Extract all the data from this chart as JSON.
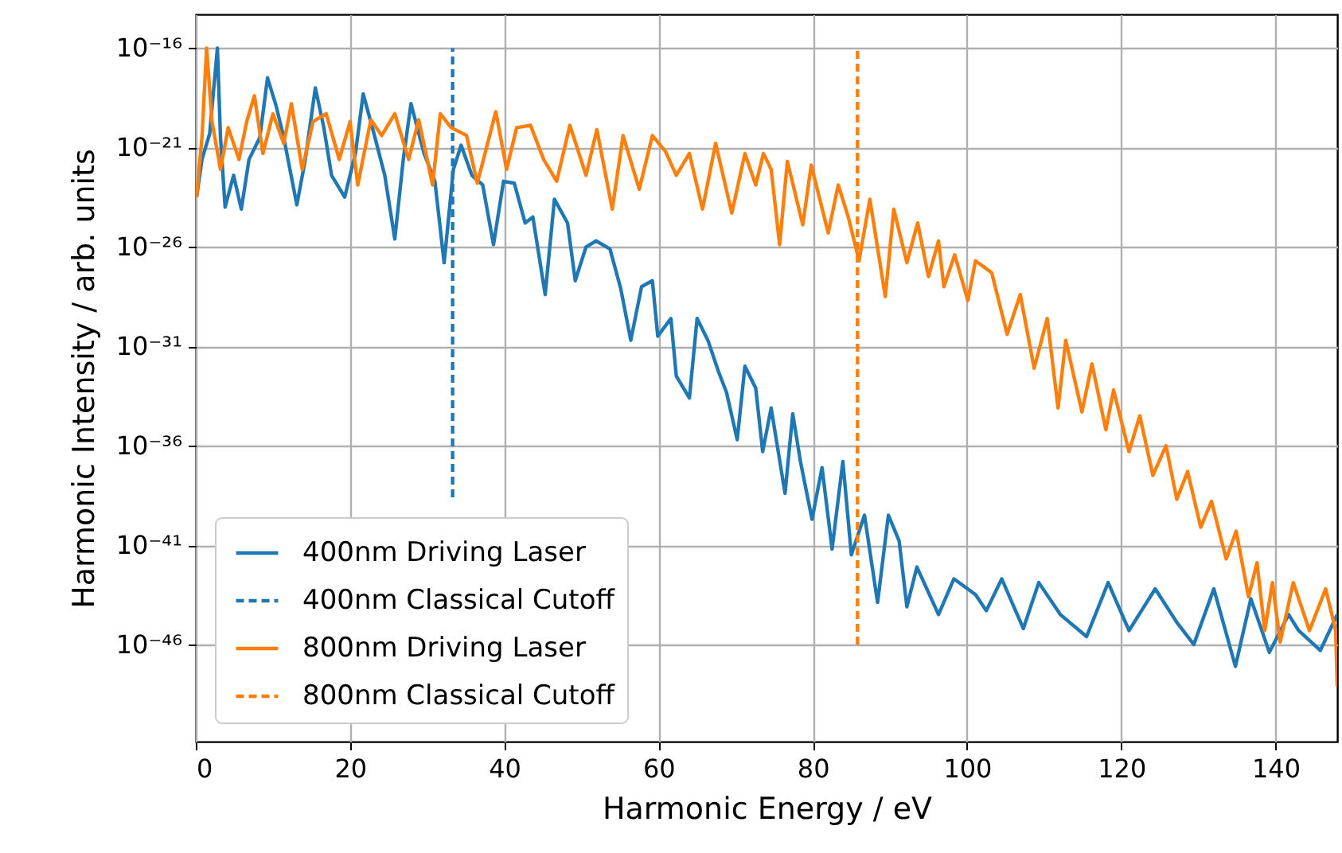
{
  "chart_data": {
    "type": "line",
    "xlabel": "Harmonic Energy / eV",
    "ylabel": "Harmonic Intensity / arb. units",
    "xlim": [
      0,
      148
    ],
    "xticks": [
      0,
      20,
      40,
      60,
      80,
      100,
      120,
      140
    ],
    "ylim": [
      1.3e-51,
      5e-15
    ],
    "yticks": [
      {
        "value": 1e-46,
        "label": "10⁻⁴⁶"
      },
      {
        "value": 1e-41,
        "label": "10⁻⁴¹"
      },
      {
        "value": 1e-36,
        "label": "10⁻³⁶"
      },
      {
        "value": 1e-31,
        "label": "10⁻³¹"
      },
      {
        "value": 1e-26,
        "label": "10⁻²⁶"
      },
      {
        "value": 1e-21,
        "label": "10⁻²¹"
      },
      {
        "value": 1e-16,
        "label": "10⁻¹⁶"
      }
    ],
    "log": "y",
    "grid": true,
    "legend": "bottom left",
    "series": [
      {
        "name": "400nm Driving Laser",
        "color": "#1f77b4",
        "line_style": "solid",
        "x": [
          0.1,
          0.8,
          1.8,
          2.8,
          3.2,
          3.8,
          4.9,
          5.9,
          6.9,
          8.3,
          9.3,
          10.4,
          11.4,
          13.1,
          14.2,
          15.5,
          16.6,
          17.6,
          19.3,
          20.7,
          21.7,
          23.1,
          24.5,
          25.8,
          26.9,
          27.9,
          29.6,
          31.0,
          32.2,
          33.4,
          34.4,
          35.8,
          37.2,
          38.6,
          39.9,
          41.3,
          42.7,
          43.7,
          45.3,
          46.5,
          48.2,
          49.2,
          50.6,
          51.9,
          53.7,
          55.1,
          56.4,
          57.8,
          59.2,
          59.9,
          61.6,
          62.3,
          64.0,
          65.0,
          66.4,
          67.8,
          68.8,
          70.2,
          71.2,
          72.6,
          73.5,
          74.6,
          76.4,
          77.4,
          78.4,
          79.9,
          81.2,
          82.5,
          83.9,
          85.0,
          86.7,
          88.4,
          89.8,
          91.2,
          92.2,
          93.5,
          96.3,
          98.3,
          101.1,
          102.5,
          104.5,
          107.3,
          109.3,
          112.1,
          115.5,
          118.3,
          121.0,
          124.4,
          127.2,
          129.4,
          132.0,
          134.8,
          136.8,
          139.2,
          141.7,
          143.0,
          145.8,
          148.0
        ],
        "values": [
          3.2e-24,
          2.5e-22,
          5e-21,
          1e-16,
          3.2e-21,
          1e-24,
          4e-23,
          7.9e-25,
          2.5e-22,
          3.2e-21,
          3.2e-18,
          1.3e-19,
          3.2e-21,
          1.3e-24,
          2.5e-22,
          1e-18,
          1e-20,
          4e-23,
          3.2e-24,
          5e-22,
          5e-19,
          5e-21,
          4e-23,
          2.5e-26,
          2.5e-22,
          1.6e-19,
          5e-22,
          2e-23,
          1.6e-27,
          7.9e-23,
          1.3e-21,
          4e-23,
          1.3e-23,
          1.3e-26,
          2e-23,
          1.6e-23,
          1.6e-25,
          3.2e-25,
          4e-29,
          2.5e-24,
          1.6e-25,
          2e-28,
          1e-26,
          2e-26,
          7.9e-27,
          7.9e-29,
          2e-31,
          1e-28,
          2e-28,
          3.2e-31,
          2.5e-30,
          3.2e-33,
          2.5e-34,
          2.5e-30,
          2e-31,
          5e-33,
          5e-34,
          2e-36,
          1e-32,
          7.9e-34,
          5e-37,
          7.9e-35,
          4e-39,
          4e-35,
          1.6e-37,
          2e-40,
          7.9e-38,
          6.3e-42,
          1.6e-37,
          3.2e-42,
          3.2e-40,
          1.3e-44,
          3.2e-40,
          1.6e-41,
          7.9e-45,
          7.9e-43,
          3.2e-45,
          2e-43,
          3.2e-44,
          5e-45,
          2e-43,
          6.3e-46,
          1.3e-43,
          3.2e-45,
          2.5e-46,
          1.3e-43,
          5e-46,
          6.3e-44,
          1.3e-45,
          1e-46,
          6.3e-44,
          7.9e-48,
          2e-44,
          4e-47,
          3.2e-45,
          5e-46,
          5e-47,
          3.2e-45
        ]
      },
      {
        "name": "400nm Classical Cutoff",
        "color": "#1f77b4",
        "line_style": "dashed",
        "x": [
          33.3,
          33.3
        ],
        "values": [
          2.5e-39,
          1e-16
        ]
      },
      {
        "name": "800nm Driving Laser",
        "color": "#ff7f0e",
        "line_style": "solid",
        "x": [
          0.1,
          0.8,
          1.4,
          2.1,
          3.2,
          4.2,
          5.6,
          6.6,
          7.6,
          8.7,
          10.0,
          11.4,
          12.4,
          13.8,
          15.2,
          16.9,
          18.6,
          20.0,
          21.0,
          22.7,
          24.1,
          25.8,
          27.6,
          28.9,
          30.7,
          31.7,
          33.1,
          35.1,
          36.5,
          38.9,
          40.3,
          41.6,
          43.4,
          45.1,
          46.8,
          48.5,
          50.6,
          52.0,
          54.0,
          55.4,
          57.5,
          59.2,
          60.9,
          62.3,
          64.0,
          65.7,
          67.4,
          69.5,
          71.2,
          72.6,
          73.6,
          74.6,
          75.7,
          76.7,
          78.7,
          79.8,
          82.0,
          83.3,
          84.6,
          86.0,
          87.4,
          89.4,
          90.5,
          92.2,
          93.6,
          95.0,
          96.3,
          97.0,
          98.4,
          100.1,
          101.1,
          103.2,
          105.2,
          106.9,
          108.7,
          110.4,
          111.8,
          112.8,
          114.9,
          116.2,
          118.0,
          119.0,
          121.0,
          122.4,
          124.1,
          125.8,
          127.2,
          128.6,
          130.3,
          131.7,
          133.6,
          134.9,
          136.5,
          137.6,
          138.6,
          139.6,
          140.6,
          142.3,
          144.4,
          146.5,
          147.8,
          148.0
        ],
        "values": [
          3.2e-24,
          3.2e-21,
          1e-16,
          2e-20,
          7.9e-23,
          1e-20,
          2.5e-22,
          2e-20,
          4e-19,
          5e-22,
          5e-20,
          1.6e-21,
          1.6e-19,
          7.9e-23,
          2e-20,
          5e-20,
          2.5e-22,
          2e-20,
          1.3e-23,
          2.5e-20,
          4e-21,
          5e-20,
          2.5e-22,
          2.5e-20,
          1.3e-23,
          5e-20,
          1e-20,
          4e-21,
          1.6e-23,
          6.3e-20,
          7.9e-23,
          1e-20,
          1.3e-20,
          2.5e-22,
          2e-23,
          1.3e-20,
          4e-23,
          7.9e-21,
          7.9e-25,
          4e-21,
          7.9e-24,
          4e-21,
          6.3e-22,
          4e-23,
          5e-22,
          7.9e-25,
          1.6e-21,
          5e-25,
          5e-22,
          1.3e-23,
          5e-22,
          7.9e-23,
          1.3e-26,
          2e-22,
          1.3e-25,
          1.3e-22,
          5e-26,
          1.3e-23,
          3.2e-25,
          2e-27,
          2.5e-24,
          3.2e-29,
          7.9e-25,
          1.6e-27,
          1.6e-25,
          3.2e-28,
          2e-26,
          1e-28,
          4e-27,
          2e-29,
          2e-27,
          5e-28,
          4e-31,
          4e-29,
          7.9e-33,
          2.5e-30,
          7.9e-35,
          2e-31,
          5e-35,
          1.3e-32,
          6.3e-36,
          6.3e-34,
          5e-37,
          3.2e-35,
          3.2e-38,
          1e-36,
          2e-39,
          5e-38,
          7.9e-41,
          1.6e-39,
          2e-42,
          5e-41,
          2.5e-44,
          1.3e-42,
          5e-46,
          1.3e-43,
          1.3e-46,
          1.3e-43,
          5e-46,
          6.3e-44,
          5e-46,
          7.9e-49
        ]
      },
      {
        "name": "800nm Classical Cutoff",
        "color": "#ff7f0e",
        "line_style": "dashed",
        "x": [
          85.8,
          85.8
        ],
        "values": [
          1e-46,
          1e-16
        ]
      }
    ]
  }
}
